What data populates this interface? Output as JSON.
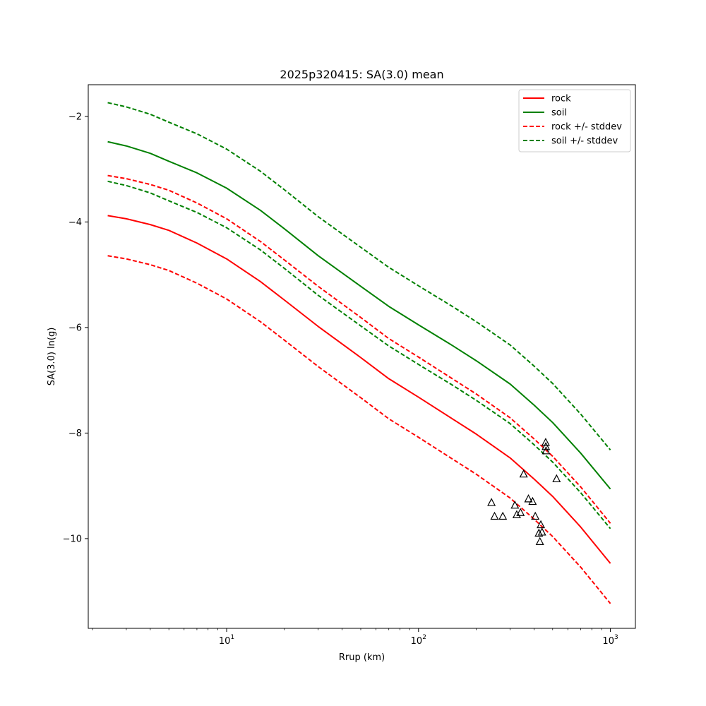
{
  "chart_data": {
    "type": "line",
    "title": "2025p320415: SA(3.0) mean",
    "xlabel": "Rrup (km)",
    "ylabel": "SA(3.0) ln(g)",
    "xscale": "log",
    "xlim": [
      1.9,
      1350
    ],
    "ylim": [
      -11.7,
      -1.4
    ],
    "grid": false,
    "legend_position": "upper-right",
    "x_ticks": [
      {
        "value": 10,
        "base": "10",
        "exp": "1"
      },
      {
        "value": 100,
        "base": "10",
        "exp": "2"
      },
      {
        "value": 1000,
        "base": "10",
        "exp": "3"
      }
    ],
    "y_ticks": [
      {
        "value": -2,
        "label": "−2"
      },
      {
        "value": -4,
        "label": "−4"
      },
      {
        "value": -6,
        "label": "−6"
      },
      {
        "value": -8,
        "label": "−8"
      },
      {
        "value": -10,
        "label": "−10"
      }
    ],
    "x": [
      2.4,
      3,
      4,
      5,
      7,
      10,
      15,
      20,
      30,
      50,
      70,
      100,
      150,
      200,
      300,
      400,
      500,
      700,
      1000
    ],
    "series": [
      {
        "name": "rock",
        "color": "#ff0000",
        "dash": "solid",
        "values": [
          -3.88,
          -3.94,
          -4.05,
          -4.16,
          -4.4,
          -4.7,
          -5.13,
          -5.48,
          -5.98,
          -6.57,
          -6.97,
          -7.32,
          -7.73,
          -8.02,
          -8.47,
          -8.87,
          -9.2,
          -9.78,
          -10.47
        ]
      },
      {
        "name": "soil",
        "color": "#008000",
        "dash": "solid",
        "values": [
          -2.48,
          -2.56,
          -2.7,
          -2.85,
          -3.07,
          -3.36,
          -3.78,
          -4.13,
          -4.64,
          -5.22,
          -5.6,
          -5.95,
          -6.34,
          -6.63,
          -7.07,
          -7.47,
          -7.8,
          -8.38,
          -9.06
        ]
      },
      {
        "name": "rock +/- stddev",
        "color": "#ff0000",
        "dash": "dashed",
        "values": [
          -3.12,
          -3.18,
          -3.29,
          -3.4,
          -3.64,
          -3.94,
          -4.37,
          -4.72,
          -5.22,
          -5.81,
          -6.21,
          -6.56,
          -6.97,
          -7.26,
          -7.71,
          -8.11,
          -8.44,
          -9.02,
          -9.71
        ]
      },
      {
        "name": "",
        "color": "#ff0000",
        "dash": "dashed",
        "values": [
          -4.64,
          -4.7,
          -4.81,
          -4.92,
          -5.16,
          -5.46,
          -5.89,
          -6.24,
          -6.74,
          -7.33,
          -7.73,
          -8.08,
          -8.49,
          -8.78,
          -9.23,
          -9.63,
          -9.96,
          -10.54,
          -11.23
        ]
      },
      {
        "name": "soil +/- stddev",
        "color": "#008000",
        "dash": "dashed",
        "values": [
          -1.74,
          -1.82,
          -1.96,
          -2.11,
          -2.33,
          -2.62,
          -3.04,
          -3.39,
          -3.9,
          -4.48,
          -4.86,
          -5.21,
          -5.6,
          -5.89,
          -6.33,
          -6.73,
          -7.06,
          -7.64,
          -8.32
        ]
      },
      {
        "name": "",
        "color": "#008000",
        "dash": "dashed",
        "values": [
          -3.23,
          -3.31,
          -3.45,
          -3.6,
          -3.82,
          -4.11,
          -4.53,
          -4.88,
          -5.39,
          -5.97,
          -6.35,
          -6.7,
          -7.09,
          -7.38,
          -7.82,
          -8.22,
          -8.55,
          -9.13,
          -9.81
        ]
      }
    ],
    "observations": {
      "marker": "triangle",
      "color": "#000000",
      "points": [
        {
          "x": 240,
          "y": -9.32
        },
        {
          "x": 249,
          "y": -9.58
        },
        {
          "x": 275,
          "y": -9.58
        },
        {
          "x": 318,
          "y": -9.37
        },
        {
          "x": 325,
          "y": -9.55
        },
        {
          "x": 340,
          "y": -9.51
        },
        {
          "x": 353,
          "y": -8.78
        },
        {
          "x": 374,
          "y": -9.25
        },
        {
          "x": 393,
          "y": -9.3
        },
        {
          "x": 406,
          "y": -9.58
        },
        {
          "x": 424,
          "y": -9.9
        },
        {
          "x": 429,
          "y": -10.06
        },
        {
          "x": 434,
          "y": -9.74
        },
        {
          "x": 440,
          "y": -9.88
        },
        {
          "x": 460,
          "y": -8.18
        },
        {
          "x": 461,
          "y": -8.26
        },
        {
          "x": 462,
          "y": -8.34
        },
        {
          "x": 524,
          "y": -8.87
        }
      ]
    }
  }
}
